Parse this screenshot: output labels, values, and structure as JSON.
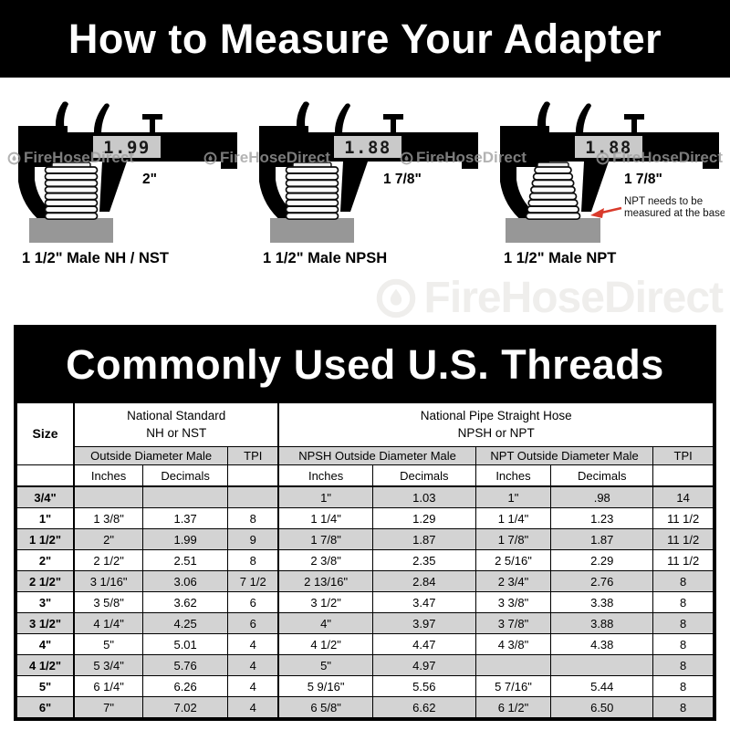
{
  "top_banner": {
    "title": "How to Measure Your Adapter",
    "bg": "#000000",
    "text_color": "#ffffff"
  },
  "watermark": {
    "brand": "FireHoseDirect",
    "icon": "flame-icon",
    "light_color": "#efeeec"
  },
  "figures": [
    {
      "reading": "1.99",
      "dimension_label": "2\"",
      "caption": "1 1/2\" Male NH / NST",
      "thread_type": "straight"
    },
    {
      "reading": "1.88",
      "dimension_label": "1 7/8\"",
      "caption": "1 1/2\" Male NPSH",
      "thread_type": "straight"
    },
    {
      "reading": "1.88",
      "dimension_label": "1 7/8\"",
      "caption": "1 1/2\" Male NPT",
      "thread_type": "tapered",
      "annotation": {
        "line1": "NPT needs to be",
        "line2": "measured at the base",
        "arrow_color": "#d93a2b"
      }
    }
  ],
  "table_banner": {
    "title": "Commonly Used U.S. Threads",
    "bg": "#000000",
    "text_color": "#ffffff"
  },
  "colors": {
    "row_shade": "#d3d3d3",
    "base_gray": "#979797",
    "lcd_bg": "#c9c9c9"
  },
  "chart_data": {
    "type": "table",
    "title": "Commonly Used U.S. Threads",
    "header": {
      "size": "Size",
      "group_nh": "National Standard\nNH or NST",
      "group_np": "National Pipe Straight Hose\nNPSH or NPT",
      "od_nh": "Outside Diameter Male",
      "tpi_nh": "TPI",
      "od_npsh": "NPSH Outside Diameter Male",
      "od_npt": "NPT Outside Diameter Male",
      "tpi_np": "TPI",
      "inches": "Inches",
      "decimals": "Decimals"
    },
    "columns": [
      "Size",
      "NH/NST Outside Diameter Male Inches",
      "NH/NST Outside Diameter Male Decimals",
      "NH/NST TPI",
      "NPSH Outside Diameter Male Inches",
      "NPSH Outside Diameter Male Decimals",
      "NPT Outside Diameter Male Inches",
      "NPT Outside Diameter Male Decimals",
      "NPSH/NPT TPI"
    ],
    "rows": [
      [
        "3/4\"",
        "",
        "",
        "",
        "1\"",
        "1.03",
        "1\"",
        ".98",
        "14"
      ],
      [
        "1\"",
        "1 3/8\"",
        "1.37",
        "8",
        "1 1/4\"",
        "1.29",
        "1 1/4\"",
        "1.23",
        "11 1/2"
      ],
      [
        "1 1/2\"",
        "2\"",
        "1.99",
        "9",
        "1 7/8\"",
        "1.87",
        "1 7/8\"",
        "1.87",
        "11 1/2"
      ],
      [
        "2\"",
        "2 1/2\"",
        "2.51",
        "8",
        "2 3/8\"",
        "2.35",
        "2 5/16\"",
        "2.29",
        "11 1/2"
      ],
      [
        "2 1/2\"",
        "3 1/16\"",
        "3.06",
        "7 1/2",
        "2 13/16\"",
        "2.84",
        "2 3/4\"",
        "2.76",
        "8"
      ],
      [
        "3\"",
        "3 5/8\"",
        "3.62",
        "6",
        "3 1/2\"",
        "3.47",
        "3 3/8\"",
        "3.38",
        "8"
      ],
      [
        "3 1/2\"",
        "4 1/4\"",
        "4.25",
        "6",
        "4\"",
        "3.97",
        "3 7/8\"",
        "3.88",
        "8"
      ],
      [
        "4\"",
        "5\"",
        "5.01",
        "4",
        "4 1/2\"",
        "4.47",
        "4 3/8\"",
        "4.38",
        "8"
      ],
      [
        "4 1/2\"",
        "5 3/4\"",
        "5.76",
        "4",
        "5\"",
        "4.97",
        "",
        "",
        "8"
      ],
      [
        "5\"",
        "6 1/4\"",
        "6.26",
        "4",
        "5 9/16\"",
        "5.56",
        "5 7/16\"",
        "5.44",
        "8"
      ],
      [
        "6\"",
        "7\"",
        "7.02",
        "4",
        "6 5/8\"",
        "6.62",
        "6 1/2\"",
        "6.50",
        "8"
      ]
    ]
  }
}
